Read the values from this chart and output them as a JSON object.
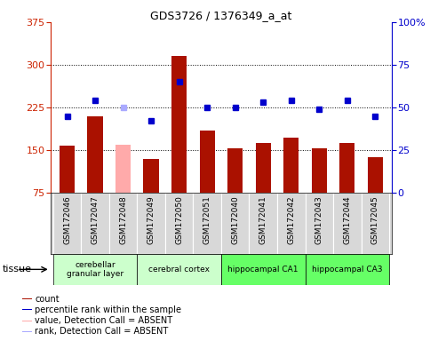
{
  "title": "GDS3726 / 1376349_a_at",
  "samples": [
    "GSM172046",
    "GSM172047",
    "GSM172048",
    "GSM172049",
    "GSM172050",
    "GSM172051",
    "GSM172040",
    "GSM172041",
    "GSM172042",
    "GSM172043",
    "GSM172044",
    "GSM172045"
  ],
  "count_values": [
    157,
    210,
    160,
    135,
    315,
    185,
    153,
    163,
    172,
    153,
    162,
    138
  ],
  "count_absent": [
    false,
    false,
    true,
    false,
    false,
    false,
    false,
    false,
    false,
    false,
    false,
    false
  ],
  "rank_values": [
    45,
    54,
    50,
    42,
    65,
    50,
    50,
    53,
    54,
    49,
    54,
    45
  ],
  "rank_absent": [
    false,
    false,
    true,
    false,
    false,
    false,
    false,
    false,
    false,
    false,
    false,
    false
  ],
  "ylim_left": [
    75,
    375
  ],
  "ylim_right": [
    0,
    100
  ],
  "yticks_left": [
    75,
    150,
    225,
    300,
    375
  ],
  "yticks_right": [
    0,
    25,
    50,
    75,
    100
  ],
  "tissue_groups": [
    {
      "label": "cerebellar\ngranular layer",
      "start": 0,
      "end": 3,
      "color": "#ccffcc"
    },
    {
      "label": "cerebral cortex",
      "start": 3,
      "end": 6,
      "color": "#ccffcc"
    },
    {
      "label": "hippocampal CA1",
      "start": 6,
      "end": 9,
      "color": "#66ff66"
    },
    {
      "label": "hippocampal CA3",
      "start": 9,
      "end": 12,
      "color": "#66ff66"
    }
  ],
  "bar_color_present": "#aa1100",
  "bar_color_absent": "#ffaaaa",
  "dot_color_present": "#0000cc",
  "dot_color_absent": "#aaaaff",
  "left_axis_color": "#cc2200",
  "right_axis_color": "#0000cc",
  "gridline_color": "#000000",
  "gridline_y": [
    150,
    225,
    300
  ],
  "sample_cell_color": "#d8d8d8",
  "legend_items": [
    {
      "color": "#aa1100",
      "label": "count"
    },
    {
      "color": "#0000cc",
      "label": "percentile rank within the sample"
    },
    {
      "color": "#ffaaaa",
      "label": "value, Detection Call = ABSENT"
    },
    {
      "color": "#aaaaff",
      "label": "rank, Detection Call = ABSENT"
    }
  ]
}
